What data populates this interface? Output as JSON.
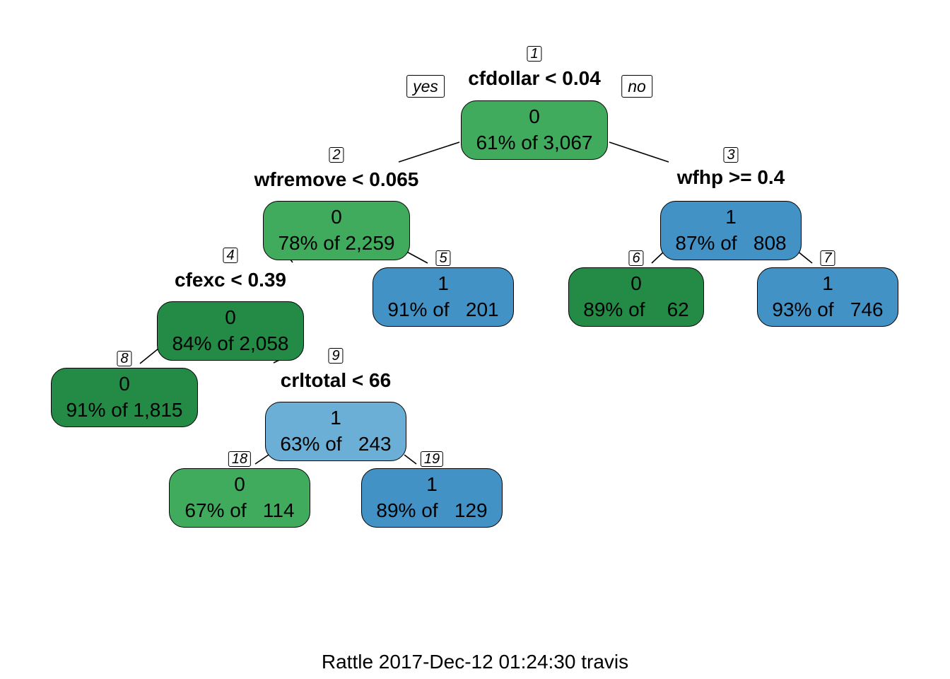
{
  "branch_labels": {
    "yes": "yes",
    "no": "no"
  },
  "nodes": [
    {
      "id": "1",
      "split": "cfdollar < 0.04",
      "class": "0",
      "pct": "61% of 3,067",
      "fill": "#41ab5d"
    },
    {
      "id": "2",
      "split": "wfremove < 0.065",
      "class": "0",
      "pct": "78% of 2,259",
      "fill": "#41ab5d"
    },
    {
      "id": "3",
      "split": "wfhp >= 0.4",
      "class": "1",
      "pct": "87% of   808",
      "fill": "#4292c6"
    },
    {
      "id": "4",
      "split": "cfexc < 0.39",
      "class": "0",
      "pct": "84% of 2,058",
      "fill": "#238b45"
    },
    {
      "id": "5",
      "split": "",
      "class": "1",
      "pct": "91% of   201",
      "fill": "#4292c6"
    },
    {
      "id": "6",
      "split": "",
      "class": "0",
      "pct": "89% of    62",
      "fill": "#238b45"
    },
    {
      "id": "7",
      "split": "",
      "class": "1",
      "pct": "93% of   746",
      "fill": "#4292c6"
    },
    {
      "id": "8",
      "split": "",
      "class": "0",
      "pct": "91% of 1,815",
      "fill": "#238b45"
    },
    {
      "id": "9",
      "split": "crltotal < 66",
      "class": "1",
      "pct": "63% of   243",
      "fill": "#6baed6"
    },
    {
      "id": "18",
      "split": "",
      "class": "0",
      "pct": "67% of   114",
      "fill": "#41ab5d"
    },
    {
      "id": "19",
      "split": "",
      "class": "1",
      "pct": "89% of   129",
      "fill": "#4292c6"
    }
  ],
  "edges": [
    [
      "1",
      "2"
    ],
    [
      "1",
      "3"
    ],
    [
      "2",
      "4"
    ],
    [
      "2",
      "5"
    ],
    [
      "3",
      "6"
    ],
    [
      "3",
      "7"
    ],
    [
      "4",
      "8"
    ],
    [
      "4",
      "9"
    ],
    [
      "9",
      "18"
    ],
    [
      "9",
      "19"
    ]
  ],
  "footer": "Rattle 2017-Dec-12 01:24:30 travis"
}
